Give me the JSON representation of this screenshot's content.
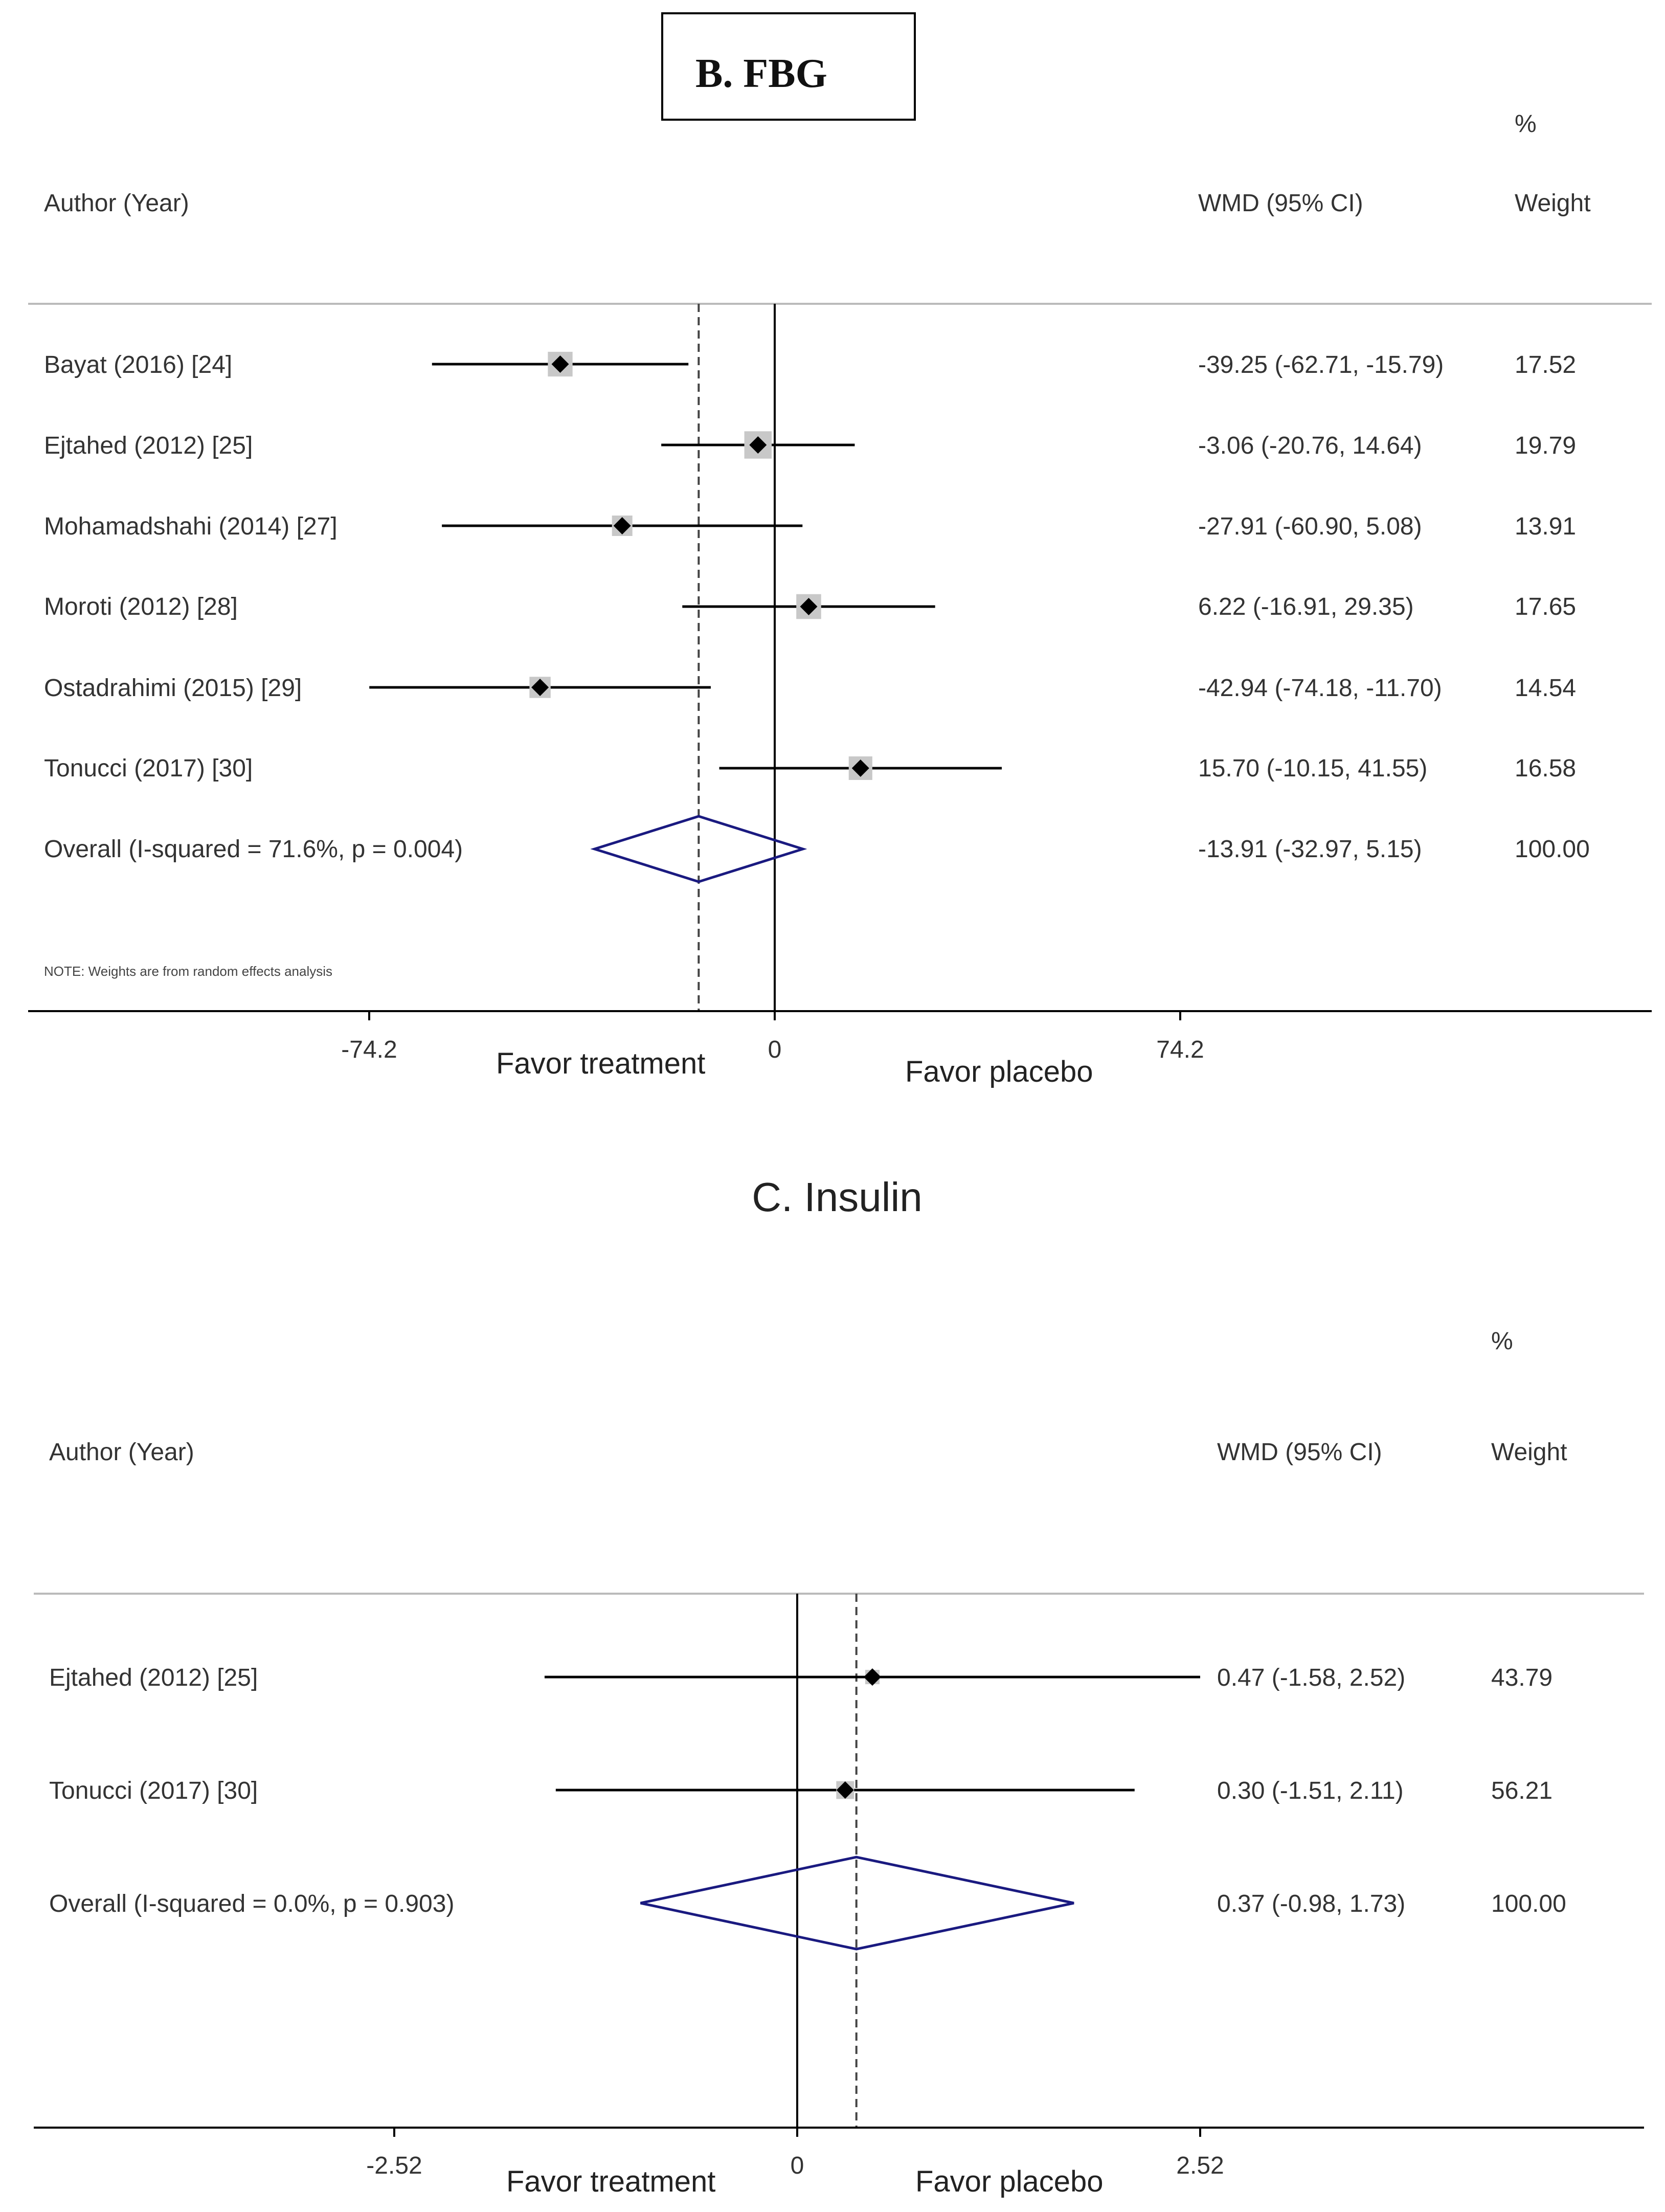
{
  "chart_data": [
    {
      "type": "forest",
      "title": "B. FBG",
      "columns": {
        "author": "Author (Year)",
        "effect": "WMD (95% CI)",
        "weight_top": "%",
        "weight": "Weight"
      },
      "studies": [
        {
          "label": "Bayat (2016) [24]",
          "est": -39.25,
          "lo": -62.71,
          "hi": -15.79,
          "ci_text": "-39.25 (-62.71, -15.79)",
          "weight": "17.52"
        },
        {
          "label": "Ejtahed (2012) [25]",
          "est": -3.06,
          "lo": -20.76,
          "hi": 14.64,
          "ci_text": "-3.06 (-20.76, 14.64)",
          "weight": "19.79"
        },
        {
          "label": "Mohamadshahi (2014) [27]",
          "est": -27.91,
          "lo": -60.9,
          "hi": 5.08,
          "ci_text": "-27.91 (-60.90, 5.08)",
          "weight": "13.91"
        },
        {
          "label": "Moroti (2012) [28]",
          "est": 6.22,
          "lo": -16.91,
          "hi": 29.35,
          "ci_text": "6.22 (-16.91, 29.35)",
          "weight": "17.65"
        },
        {
          "label": "Ostadrahimi (2015) [29]",
          "est": -42.94,
          "lo": -74.18,
          "hi": -11.7,
          "ci_text": "-42.94 (-74.18, -11.70)",
          "weight": "14.54"
        },
        {
          "label": "Tonucci (2017) [30]",
          "est": 15.7,
          "lo": -10.15,
          "hi": 41.55,
          "ci_text": "15.70 (-10.15, 41.55)",
          "weight": "16.58"
        }
      ],
      "overall": {
        "label": "Overall  (I-squared = 71.6%, p = 0.004)",
        "est": -13.91,
        "lo": -32.97,
        "hi": 5.15,
        "ci_text": "-13.91 (-32.97, 5.15)",
        "weight": "100.00"
      },
      "note": "NOTE: Weights are from random effects analysis",
      "xlim": [
        -74.2,
        74.2
      ],
      "ticks": [
        -74.2,
        0,
        74.2
      ],
      "tick_labels": [
        "-74.2",
        "0",
        "74.2"
      ],
      "favor_left": "Favor treatment",
      "favor_right": "Favor placebo",
      "colors": {
        "line": "#000000",
        "diamond": "#1a1a80",
        "box": "#c8c8c8"
      }
    },
    {
      "type": "forest",
      "title": "C. Insulin",
      "columns": {
        "author": "Author (Year)",
        "effect": "WMD (95% CI)",
        "weight_top": "%",
        "weight": "Weight"
      },
      "studies": [
        {
          "label": "Ejtahed (2012) [25]",
          "est": 0.47,
          "lo": -1.58,
          "hi": 2.52,
          "ci_text": "0.47 (-1.58, 2.52)",
          "weight": "43.79"
        },
        {
          "label": "Tonucci (2017) [30]",
          "est": 0.3,
          "lo": -1.51,
          "hi": 2.11,
          "ci_text": "0.30 (-1.51, 2.11)",
          "weight": "56.21"
        }
      ],
      "overall": {
        "label": "Overall  (I-squared = 0.0%, p = 0.903)",
        "est": 0.37,
        "lo": -0.98,
        "hi": 1.73,
        "ci_text": "0.37 (-0.98, 1.73)",
        "weight": "100.00"
      },
      "xlim": [
        -2.52,
        2.52
      ],
      "ticks": [
        -2.52,
        0,
        2.52
      ],
      "tick_labels": [
        "-2.52",
        "0",
        "2.52"
      ],
      "favor_left": "Favor treatment",
      "favor_right": "Favor placebo",
      "colors": {
        "line": "#000000",
        "diamond": "#1a1a80",
        "box": "#c8c8c8"
      }
    }
  ]
}
